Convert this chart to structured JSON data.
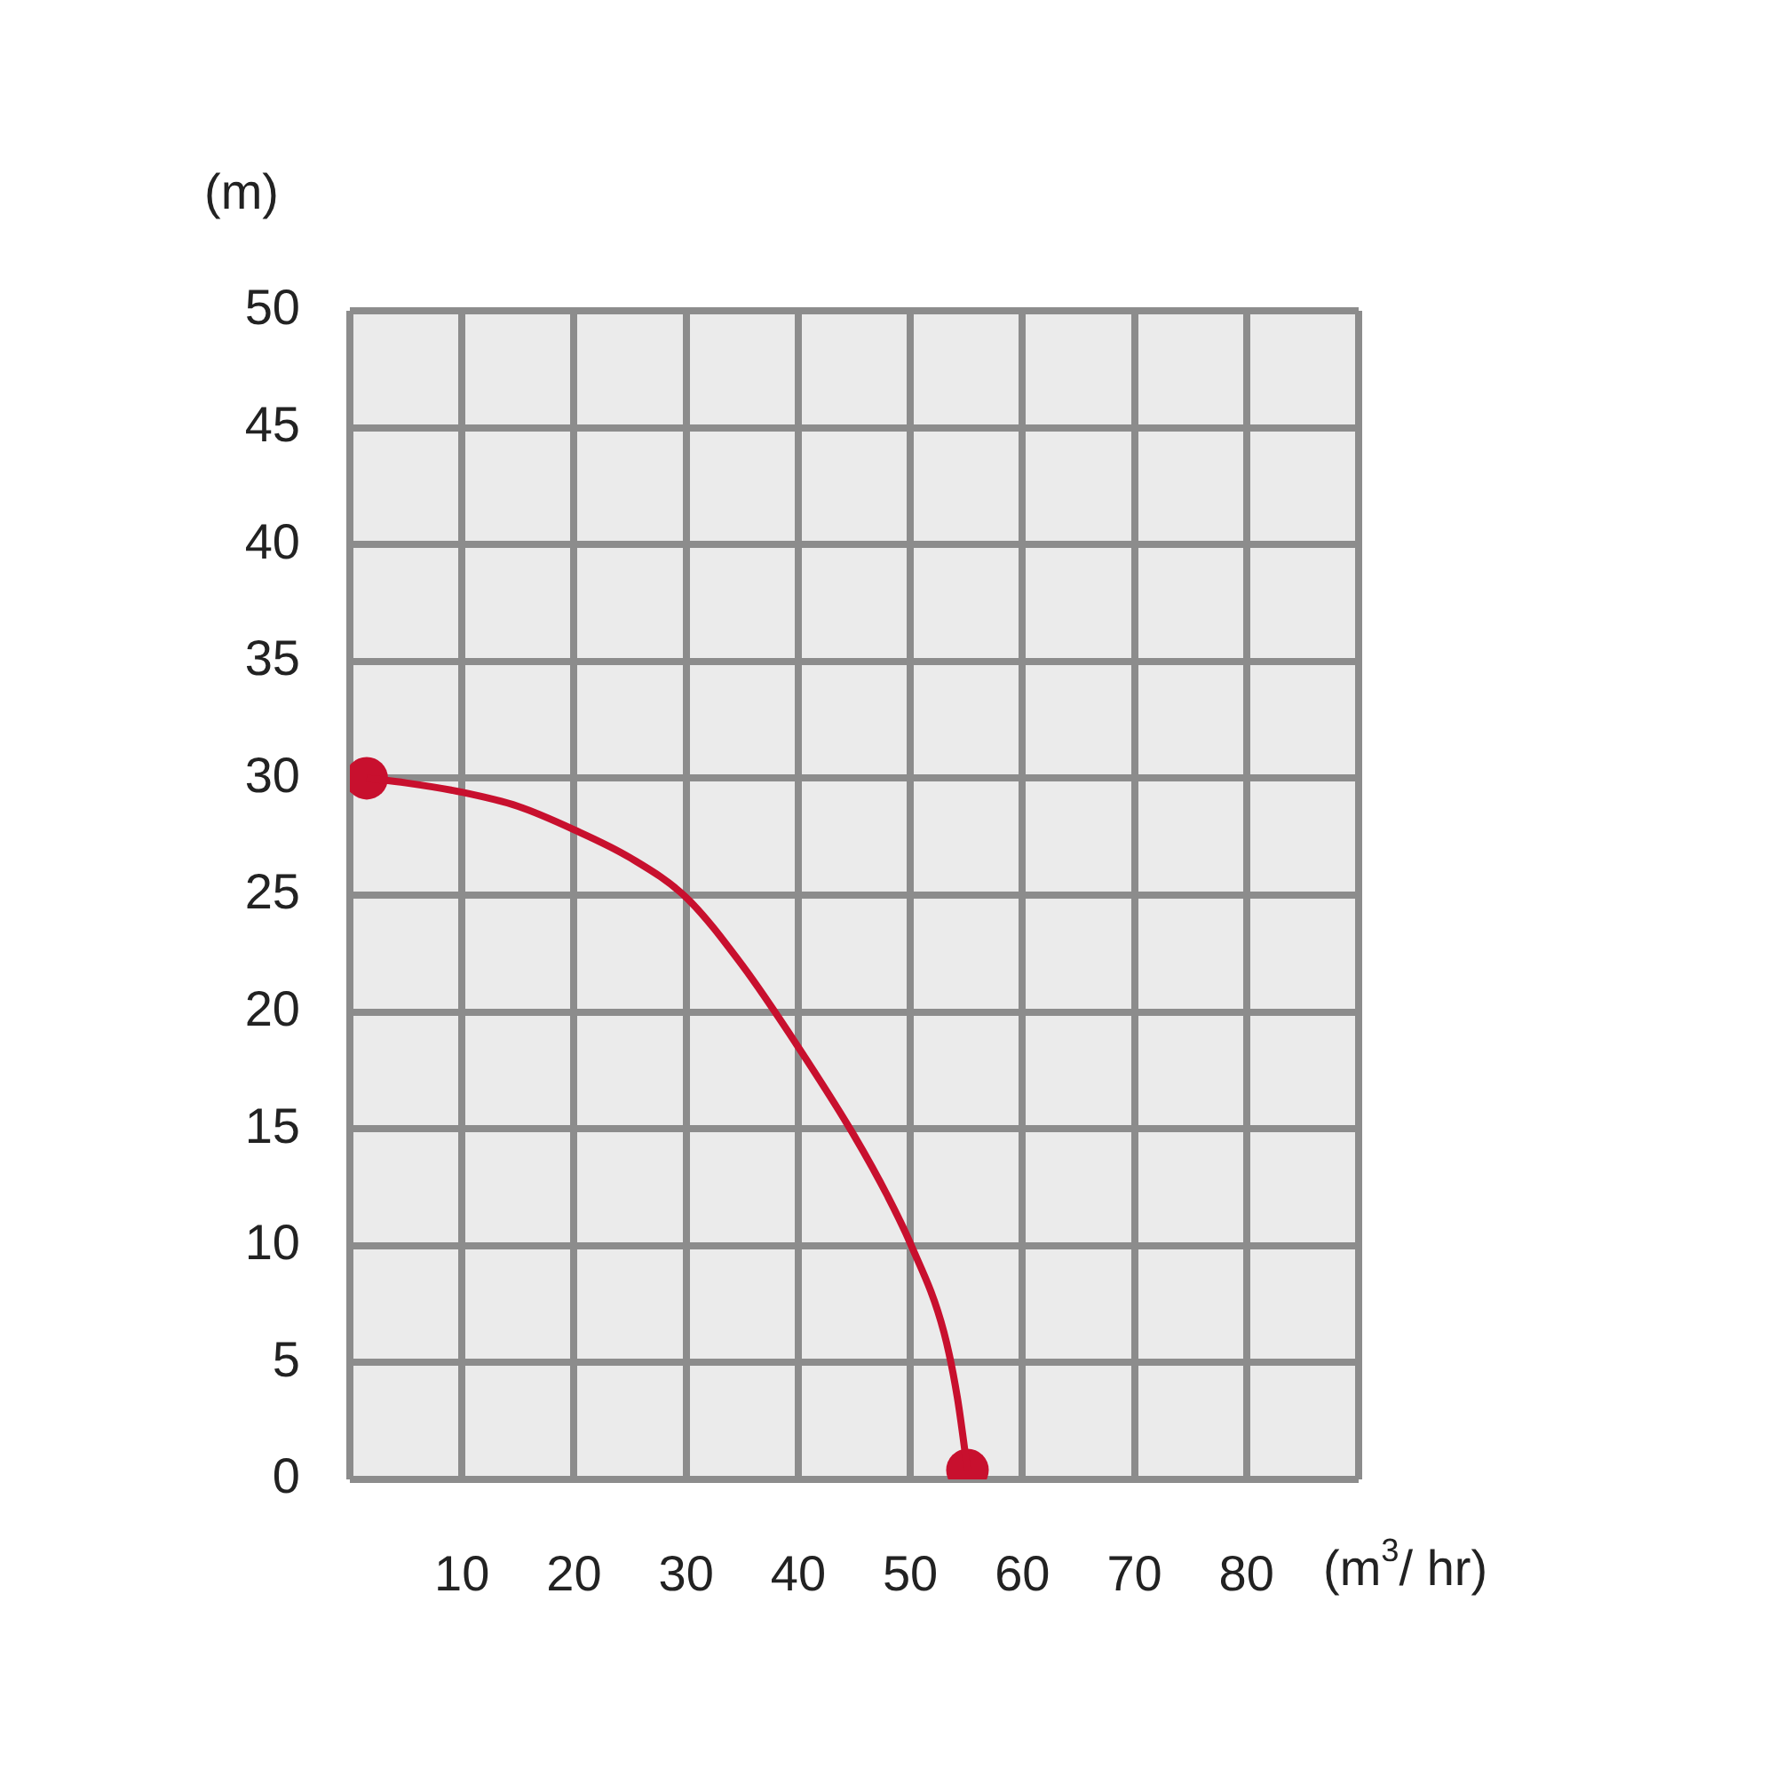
{
  "chart_data": {
    "type": "line",
    "xlabel": "(m$^{3}$/ hr)",
    "ylabel": "(m)",
    "xlim": [
      0,
      90
    ],
    "xticks": [
      {
        "value": 0,
        "label": null
      },
      10,
      20,
      30,
      40,
      50,
      60,
      70,
      80,
      {
        "value": 90,
        "label": null
      }
    ],
    "ylim": [
      0,
      50
    ],
    "yticks": [
      0,
      5,
      10,
      15,
      20,
      25,
      30,
      35,
      40,
      45,
      50
    ],
    "grid": true,
    "series": [
      {
        "color": "#c8102e",
        "line_style": "solid",
        "marker": "none",
        "x": [
          1.5,
          5,
          10,
          15,
          20,
          25,
          30,
          35,
          40,
          45,
          48,
          50,
          53,
          54.2,
          55.1
        ],
        "values": [
          30,
          29.8,
          29.4,
          28.8,
          27.8,
          26.6,
          24.9,
          22.0,
          18.5,
          14.7,
          12.1,
          10.1,
          6.3,
          3.5,
          0.4
        ]
      },
      {
        "type": "scatter",
        "color": "#c8102e",
        "marker": "circle",
        "x": [
          1.5,
          55.1
        ],
        "values": [
          30,
          0.4
        ]
      }
    ]
  }
}
